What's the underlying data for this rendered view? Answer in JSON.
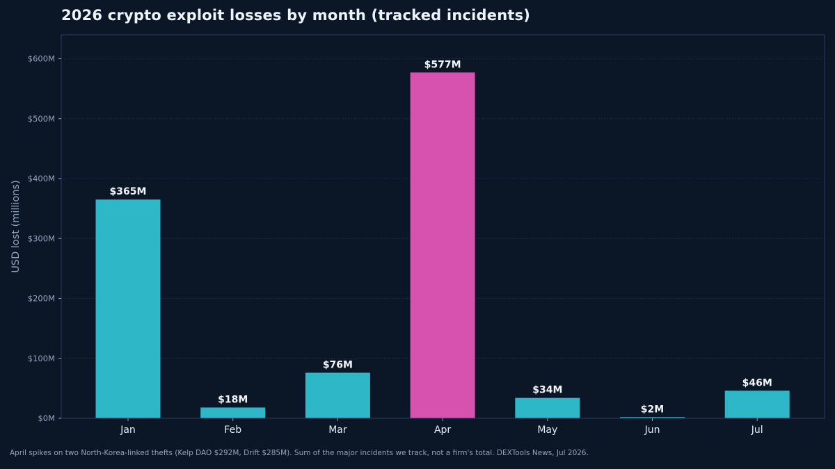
{
  "chart_data": {
    "type": "bar",
    "title": "2026 crypto exploit losses by month (tracked incidents)",
    "ylabel": "USD lost (millions)",
    "xlabel": "",
    "categories": [
      "Jan",
      "Feb",
      "Mar",
      "Apr",
      "May",
      "Jun",
      "Jul"
    ],
    "values": [
      365,
      18,
      76,
      577,
      34,
      2,
      46
    ],
    "value_labels": [
      "$365M",
      "$18M",
      "$76M",
      "$577M",
      "$34M",
      "$2M",
      "$46M"
    ],
    "ylim": [
      0,
      640
    ],
    "yticks": [
      0,
      100,
      200,
      300,
      400,
      500,
      600
    ],
    "ytick_labels": [
      "$0M",
      "$100M",
      "$200M",
      "$300M",
      "$400M",
      "$500M",
      "$600M"
    ],
    "highlight_category": "Apr",
    "grid": true,
    "colors": {
      "bar": "#2eb7c7",
      "highlight": "#d652ae",
      "background": "#0b1627",
      "plot_border": "#2b3d5c",
      "grid": "#1c2b44"
    }
  },
  "footnote": "April spikes on two North-Korea-linked thefts (Kelp DAO $292M, Drift $285M). Sum of the major incidents we track, not a firm's total. DEXTools News, Jul 2026."
}
